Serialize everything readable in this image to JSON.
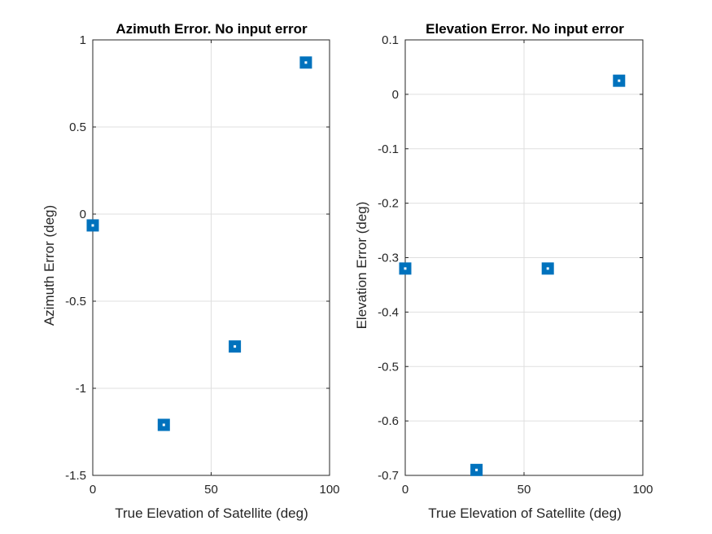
{
  "chart_data": [
    {
      "type": "scatter",
      "title": "Azimuth Error. No input error",
      "xlabel": "True Elevation of Satellite (deg)",
      "ylabel": "Azimuth Error (deg)",
      "xlim": [
        0,
        100
      ],
      "ylim": [
        -1.5,
        1
      ],
      "xticks": [
        0,
        50,
        100
      ],
      "xtick_labels": [
        "0",
        "50",
        "100"
      ],
      "yticks": [
        1,
        0.5,
        0,
        -0.5,
        -1,
        -1.5
      ],
      "ytick_labels": [
        "1",
        "0.5",
        "0",
        "-0.5",
        "-1",
        "-1.5"
      ],
      "grid": true,
      "marker": "square",
      "marker_color": "#0072BD",
      "x": [
        0,
        30,
        60,
        90
      ],
      "y": [
        -0.065,
        -1.21,
        -0.76,
        0.87
      ]
    },
    {
      "type": "scatter",
      "title": "Elevation Error. No input error",
      "xlabel": "True Elevation of Satellite (deg)",
      "ylabel": "Elevation Error (deg)",
      "xlim": [
        0,
        100
      ],
      "ylim": [
        -0.7,
        0.1
      ],
      "xticks": [
        0,
        50,
        100
      ],
      "xtick_labels": [
        "0",
        "50",
        "100"
      ],
      "yticks": [
        0.1,
        0,
        -0.1,
        -0.2,
        -0.3,
        -0.4,
        -0.5,
        -0.6,
        -0.7
      ],
      "ytick_labels": [
        "0.1",
        "0",
        "-0.1",
        "-0.2",
        "-0.3",
        "-0.4",
        "-0.5",
        "-0.6",
        "-0.7"
      ],
      "grid": true,
      "marker": "square",
      "marker_color": "#0072BD",
      "x": [
        0,
        30,
        60,
        90
      ],
      "y": [
        -0.32,
        -0.69,
        -0.32,
        0.025
      ]
    }
  ]
}
